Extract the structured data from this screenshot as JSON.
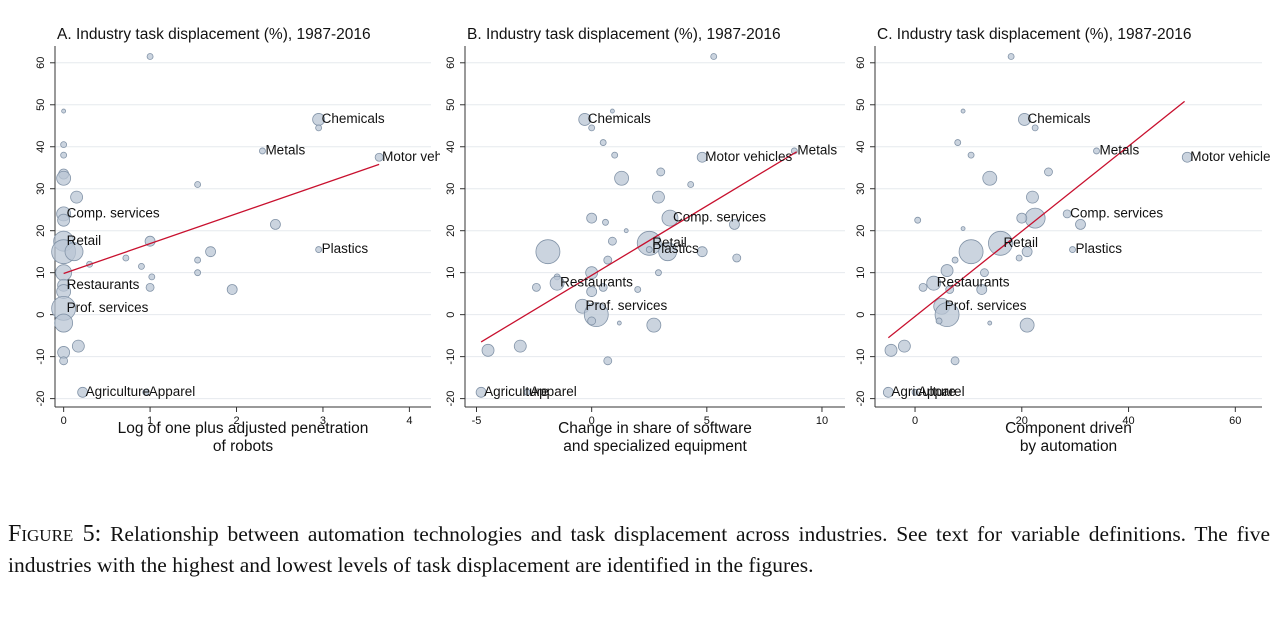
{
  "chart_data": [
    {
      "type": "scatter",
      "title": "A. Industry task displacement (%), 1987-2016",
      "xlabel": [
        "Log of one plus adjusted penetration",
        "of robots"
      ],
      "xlim": [
        -0.1,
        4.25
      ],
      "ylim": [
        -22,
        64
      ],
      "xticks": [
        0,
        1,
        2,
        3,
        4
      ],
      "yticks": [
        -20,
        -10,
        0,
        10,
        20,
        30,
        40,
        50,
        60
      ],
      "grid": true,
      "color": "#b9c6d4",
      "fit_color": "#c8102e",
      "x": [
        1.0,
        0,
        0,
        0,
        0,
        0,
        0.15,
        0,
        0,
        0,
        0,
        0.12,
        0,
        0.3,
        0,
        0,
        0,
        0,
        0,
        0,
        0.17,
        0.22,
        0.95,
        0.72,
        0.9,
        1.0,
        1.02,
        1.0,
        1.55,
        1.55,
        1.55,
        1.7,
        1.95,
        2.3,
        2.95,
        2.95,
        2.45,
        2.95,
        3.65
      ],
      "y": [
        61.5,
        48.5,
        40.5,
        38,
        33.5,
        32.5,
        28,
        24,
        22.5,
        17.5,
        15,
        15,
        10,
        12,
        7,
        5.5,
        1.5,
        -2,
        -9,
        -11,
        -7.5,
        -18.5,
        -18.5,
        13.5,
        11.5,
        17.5,
        9,
        6.5,
        31,
        13,
        10,
        15,
        6,
        39,
        46.5,
        44.5,
        21.5,
        15.5,
        37.5
      ],
      "sizes": [
        3,
        2,
        3,
        3,
        5,
        7,
        6,
        7,
        6,
        10,
        12,
        9,
        8,
        3,
        6,
        7,
        12,
        9,
        6,
        4,
        6,
        5,
        3,
        3,
        3,
        5,
        3,
        4,
        3,
        3,
        3,
        5,
        5,
        3,
        6,
        3,
        5,
        3,
        4
      ],
      "labels": [
        null,
        null,
        null,
        null,
        null,
        null,
        null,
        "Comp. services",
        null,
        "Retail",
        null,
        null,
        null,
        null,
        "Restaurants",
        null,
        "Prof. services",
        null,
        null,
        null,
        null,
        "Agriculture",
        "Apparel",
        null,
        null,
        null,
        null,
        null,
        null,
        null,
        null,
        null,
        null,
        "Metals",
        "Chemicals",
        null,
        null,
        "Plastics",
        "Motor vehicles"
      ],
      "fit": {
        "x": [
          0,
          3.65
        ],
        "y": [
          9.8,
          35.8
        ]
      }
    },
    {
      "type": "scatter",
      "title": "B. Industry task displacement (%), 1987-2016",
      "xlabel": [
        "Change in share of software",
        "and specialized equipment"
      ],
      "xlim": [
        -5.5,
        11
      ],
      "ylim": [
        -22,
        64
      ],
      "xticks": [
        -5,
        0,
        5,
        10
      ],
      "yticks": [
        -20,
        -10,
        0,
        10,
        20,
        30,
        40,
        50,
        60
      ],
      "grid": true,
      "color": "#b9c6d4",
      "fit_color": "#c8102e",
      "x": [
        5.3,
        0.9,
        -0.3,
        0,
        0.5,
        1,
        4.8,
        8.8,
        3,
        4.3,
        1.3,
        2.9,
        3.4,
        0,
        0.6,
        6.2,
        0.9,
        1.5,
        2.5,
        -1.9,
        3.3,
        4.8,
        2.5,
        6.3,
        0.7,
        -1.5,
        0,
        -1.5,
        -2.4,
        0.5,
        0,
        2,
        2.9,
        -0.4,
        0.2,
        0,
        1.2,
        2.7,
        -4.5,
        -3.1,
        0.7,
        -4.8,
        -2.8
      ],
      "y": [
        61.5,
        48.5,
        46.5,
        44.5,
        41,
        38,
        37.5,
        39,
        34,
        31,
        32.5,
        28,
        23,
        23,
        22,
        21.5,
        17.5,
        20,
        17,
        15,
        15,
        15,
        15.5,
        13.5,
        13,
        9,
        10,
        7.5,
        6.5,
        6.5,
        5.5,
        6,
        10,
        2,
        0,
        -1.5,
        -2,
        -2.5,
        -8.5,
        -7.5,
        -11,
        -18.5,
        -18.5
      ],
      "sizes": [
        3,
        2,
        6,
        3,
        3,
        3,
        5,
        3,
        4,
        3,
        7,
        6,
        8,
        5,
        3,
        5,
        4,
        2,
        12,
        12,
        9,
        5,
        3,
        4,
        4,
        3,
        6,
        7,
        4,
        4,
        5,
        3,
        3,
        7,
        12,
        4,
        2,
        7,
        6,
        6,
        4,
        5,
        3
      ],
      "labels": [
        null,
        null,
        "Chemicals",
        null,
        null,
        null,
        "Motor vehicles",
        "Metals",
        null,
        null,
        null,
        null,
        "Comp. services",
        null,
        null,
        null,
        null,
        null,
        "Retail",
        null,
        null,
        null,
        "Plastics",
        null,
        null,
        null,
        null,
        "Restaurants",
        null,
        null,
        null,
        null,
        null,
        "Prof. services",
        null,
        null,
        null,
        null,
        null,
        null,
        null,
        "Agriculture",
        "Apparel"
      ],
      "fit": {
        "x": [
          -4.8,
          8.9
        ],
        "y": [
          -6.5,
          38.8
        ]
      }
    },
    {
      "type": "scatter",
      "title": "C. Industry task displacement (%), 1987-2016",
      "xlabel": [
        "Component driven",
        "by automation"
      ],
      "xlim": [
        -7.5,
        65
      ],
      "ylim": [
        -22,
        64
      ],
      "xticks": [
        0,
        20,
        40,
        60
      ],
      "yticks": [
        -20,
        -10,
        0,
        10,
        20,
        30,
        40,
        50,
        60
      ],
      "grid": true,
      "color": "#b9c6d4",
      "fit_color": "#c8102e",
      "x": [
        18,
        9,
        20.5,
        22.5,
        8,
        10.5,
        51,
        34,
        25,
        14,
        22,
        22.5,
        28.5,
        20,
        0.5,
        31,
        9,
        16,
        10.5,
        21,
        29.5,
        19.5,
        7.5,
        6,
        13,
        3.5,
        1.5,
        6.5,
        12.5,
        5,
        6,
        4.5,
        14,
        21,
        -4.5,
        -2,
        7.5,
        -5,
        0
      ],
      "y": [
        61.5,
        48.5,
        46.5,
        44.5,
        41,
        38,
        37.5,
        39,
        34,
        32.5,
        28,
        23,
        24,
        23,
        22.5,
        21.5,
        20.5,
        17,
        15,
        15,
        15.5,
        13.5,
        13,
        10.5,
        10,
        7.5,
        6.5,
        6,
        6,
        2,
        0,
        -1.5,
        -2,
        -2.5,
        -8.5,
        -7.5,
        -11,
        -18.5,
        -18.5
      ],
      "sizes": [
        3,
        2,
        6,
        3,
        3,
        3,
        5,
        3,
        4,
        7,
        6,
        10,
        4,
        5,
        3,
        5,
        2,
        12,
        12,
        5,
        3,
        3,
        3,
        6,
        4,
        7,
        4,
        4,
        5,
        8,
        12,
        3,
        2,
        7,
        6,
        6,
        4,
        5,
        3
      ],
      "labels": [
        null,
        null,
        "Chemicals",
        null,
        null,
        null,
        "Motor vehicles",
        "Metals",
        null,
        null,
        null,
        null,
        "Comp. services",
        null,
        null,
        null,
        null,
        "Retail",
        null,
        null,
        "Plastics",
        null,
        null,
        null,
        null,
        "Restaurants",
        null,
        null,
        null,
        "Prof. services",
        null,
        null,
        null,
        null,
        null,
        null,
        null,
        "Agriculture",
        "Apparel"
      ],
      "fit": {
        "x": [
          -5,
          50.5
        ],
        "y": [
          -5.5,
          50.8
        ]
      }
    }
  ],
  "caption": {
    "label": "Figure 5:",
    "text": "Relationship between automation technologies and task displacement across industries. See text for variable definitions. The five industries with the highest and lowest levels of task displacement are identified in the figures."
  }
}
